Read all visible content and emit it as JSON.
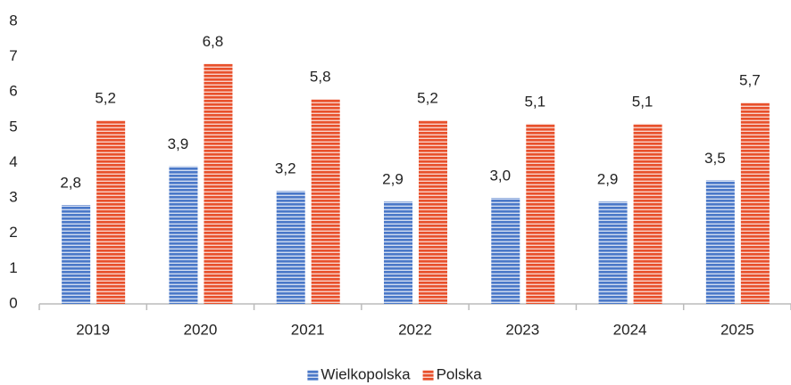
{
  "chart_data": {
    "type": "bar",
    "categories": [
      "2019",
      "2020",
      "2021",
      "2022",
      "2023",
      "2024",
      "2025"
    ],
    "series": [
      {
        "name": "Wielkopolska",
        "color": "#4a78c8",
        "values": [
          2.8,
          3.9,
          3.2,
          2.9,
          3.0,
          2.9,
          3.5
        ],
        "value_labels": [
          "2,8",
          "3,9",
          "3,2",
          "2,9",
          "3,0",
          "2,9",
          "3,5"
        ]
      },
      {
        "name": "Polska",
        "color": "#e8502b",
        "values": [
          5.2,
          6.8,
          5.8,
          5.2,
          5.1,
          5.1,
          5.7
        ],
        "value_labels": [
          "5,2",
          "6,8",
          "5,8",
          "5,2",
          "5,1",
          "5,1",
          "5,7"
        ]
      }
    ],
    "ylim": [
      0,
      8
    ],
    "yticks": [
      0,
      1,
      2,
      3,
      4,
      5,
      6,
      7,
      8
    ],
    "grid": false,
    "legend": "bottom"
  }
}
